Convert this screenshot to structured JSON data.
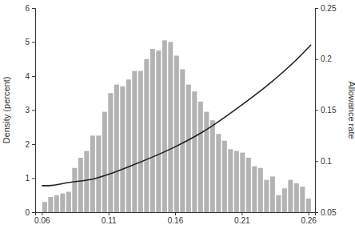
{
  "chart_data": {
    "type": "histogram",
    "y_label": "Density (percent)",
    "y2_label": "Allowance rate",
    "color": "#b3b3b3",
    "bins": [
      0.06,
      0.0645,
      0.069,
      0.0735,
      0.078,
      0.0825,
      0.087,
      0.0915,
      0.096,
      0.1005,
      0.105,
      0.1095,
      0.114,
      0.1185,
      0.123,
      0.1275,
      0.132,
      0.1365,
      0.141,
      0.1455,
      0.15,
      0.1545,
      0.159,
      0.1635,
      0.168,
      0.1725,
      0.177,
      0.1815,
      0.186,
      0.1905,
      0.195,
      0.1995,
      0.204,
      0.2085,
      0.213,
      0.2175,
      0.222,
      0.2265,
      0.231,
      0.2355,
      0.24,
      0.2445,
      0.249,
      0.2535,
      0.258,
      0.2625
    ],
    "values": [
      0.3,
      0.45,
      0.5,
      0.55,
      0.6,
      1.3,
      1.6,
      1.8,
      2.25,
      2.25,
      2.95,
      3.5,
      3.75,
      3.7,
      3.9,
      4.15,
      4.15,
      4.5,
      4.8,
      4.75,
      5.05,
      5.0,
      4.6,
      4.2,
      3.75,
      3.55,
      3.25,
      2.95,
      2.7,
      2.3,
      2.1,
      1.85,
      1.8,
      1.75,
      1.6,
      1.35,
      1.3,
      0.95,
      1.05,
      0.5,
      0.7,
      0.95,
      0.85,
      0.75,
      0.4
    ],
    "xlim": [
      0.055,
      0.265
    ],
    "xticks": [
      0.06,
      0.11,
      0.16,
      0.21,
      0.26
    ],
    "ylim": [
      0,
      6
    ],
    "yticks": [
      0,
      1,
      2,
      3,
      4,
      5,
      6
    ],
    "y2lim": [
      0.05,
      0.25
    ],
    "y2ticks": [
      0.05,
      0.1,
      0.15,
      0.2,
      0.25
    ],
    "series": [
      {
        "type": "line",
        "axis": "y2",
        "color": "#222222",
        "x": [
          0.06,
          0.065,
          0.08,
          0.1,
          0.11,
          0.13,
          0.16,
          0.18,
          0.21,
          0.23,
          0.25,
          0.262
        ],
        "values": [
          0.076,
          0.076,
          0.079,
          0.083,
          0.087,
          0.097,
          0.114,
          0.128,
          0.155,
          0.175,
          0.198,
          0.214
        ]
      }
    ]
  }
}
